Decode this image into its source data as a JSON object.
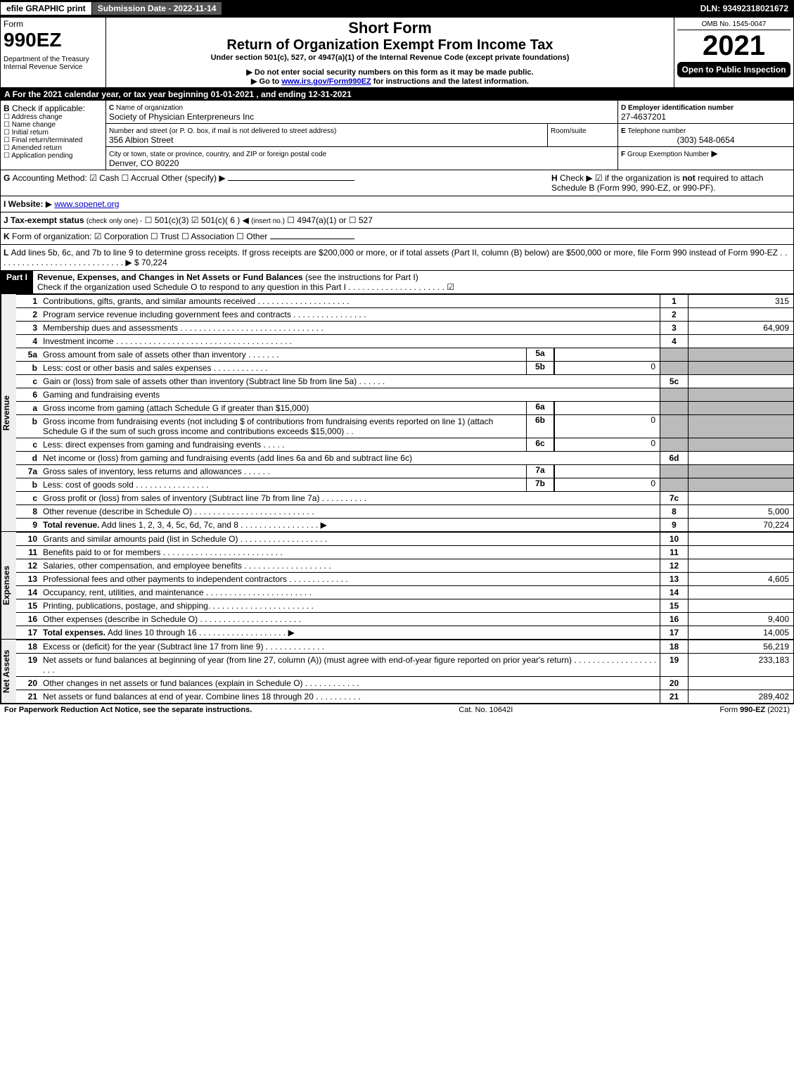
{
  "topbar": {
    "efile": "efile GRAPHIC print",
    "subdate_label": "Submission Date - ",
    "subdate": "2022-11-14",
    "dln_label": "DLN: ",
    "dln": "93492318021672"
  },
  "header": {
    "form_word": "Form",
    "form_num": "990EZ",
    "dept": "Department of the Treasury",
    "irs": "Internal Revenue Service",
    "title1": "Short Form",
    "title2": "Return of Organization Exempt From Income Tax",
    "under": "Under section 501(c), 527, or 4947(a)(1) of the Internal Revenue Code (except private foundations)",
    "warn": "Do not enter social security numbers on this form as it may be made public.",
    "goto_pre": "Go to ",
    "goto_link": "www.irs.gov/Form990EZ",
    "goto_post": " for instructions and the latest information.",
    "omb": "OMB No. 1545-0047",
    "year": "2021",
    "open": "Open to Public Inspection"
  },
  "A": {
    "text": "For the 2021 calendar year, or tax year beginning 01-01-2021 , and ending 12-31-2021"
  },
  "B": {
    "label": "Check if applicable:",
    "opts": [
      "Address change",
      "Name change",
      "Initial return",
      "Final return/terminated",
      "Amended return",
      "Application pending"
    ]
  },
  "C": {
    "name_label": "Name of organization",
    "name": "Society of Physician Enterpreneurs Inc",
    "street_label": "Number and street (or P. O. box, if mail is not delivered to street address)",
    "room_label": "Room/suite",
    "street": "356 Albion Street",
    "city_label": "City or town, state or province, country, and ZIP or foreign postal code",
    "city": "Denver, CO  80220"
  },
  "D": {
    "label": "Employer identification number",
    "val": "27-4637201"
  },
  "E": {
    "label": "Telephone number",
    "val": "(303) 548-0654"
  },
  "F": {
    "label": "Group Exemption Number",
    "arrow": "▶"
  },
  "G": {
    "label": "Accounting Method:",
    "cash": "Cash",
    "accrual": "Accrual",
    "other": "Other (specify)"
  },
  "H": {
    "text1": "Check ▶",
    "text2": "if the organization is ",
    "not": "not",
    "text3": " required to attach Schedule B (Form 990, 990-EZ, or 990-PF)."
  },
  "I": {
    "label": "Website:",
    "val": "www.sopenet.org"
  },
  "J": {
    "label": "Tax-exempt status",
    "note": "(check only one) -",
    "o1": "501(c)(3)",
    "o2": "501(c)( 6 )",
    "o2_note": "(insert no.)",
    "o3": "4947(a)(1) or",
    "o4": "527"
  },
  "K": {
    "label": "Form of organization:",
    "opts": [
      "Corporation",
      "Trust",
      "Association",
      "Other"
    ]
  },
  "L": {
    "text": "Add lines 5b, 6c, and 7b to line 9 to determine gross receipts. If gross receipts are $200,000 or more, or if total assets (Part II, column (B) below) are $500,000 or more, file Form 990 instead of Form 990-EZ  .  .  .  .  .  .  .  .  .  .  .  .  .  .  .  .  .  .  .  .  .  .  .  .  .  .  .  .  ▶ $ ",
    "val": "70,224"
  },
  "part1": {
    "label": "Part I",
    "title": "Revenue, Expenses, and Changes in Net Assets or Fund Balances",
    "title_note": "(see the instructions for Part I)",
    "check_note": "Check if the organization used Schedule O to respond to any question in this Part I  .  .  .  .  .  .  .  .  .  .  .  .  .  .  .  .  .  .  .  .  .",
    "sections": {
      "revenue": "Revenue",
      "expenses": "Expenses",
      "netassets": "Net Assets"
    },
    "lines": [
      {
        "n": "1",
        "d": "Contributions, gifts, grants, and similar amounts received  .  .  .  .  .  .  .  .  .  .  .  .  .  .  .  .  .  .  .  .",
        "box": "1",
        "amt": "315"
      },
      {
        "n": "2",
        "d": "Program service revenue including government fees and contracts  .  .  .  .  .  .  .  .  .  .  .  .  .  .  .  .",
        "box": "2",
        "amt": ""
      },
      {
        "n": "3",
        "d": "Membership dues and assessments  .  .  .  .  .  .  .  .  .  .  .  .  .  .  .  .  .  .  .  .  .  .  .  .  .  .  .  .  .  .  .",
        "box": "3",
        "amt": "64,909"
      },
      {
        "n": "4",
        "d": "Investment income  .  .  .  .  .  .  .  .  .  .  .  .  .  .  .  .  .  .  .  .  .  .  .  .  .  .  .  .  .  .  .  .  .  .  .  .  .  .",
        "box": "4",
        "amt": ""
      },
      {
        "n": "5a",
        "d": "Gross amount from sale of assets other than inventory  .  .  .  .  .  .  .",
        "sub": "5a",
        "subval": "",
        "shade": true
      },
      {
        "n": "b",
        "d": "Less: cost or other basis and sales expenses  .  .  .  .  .  .  .  .  .  .  .  .",
        "sub": "5b",
        "subval": "0",
        "shade": true
      },
      {
        "n": "c",
        "d": "Gain or (loss) from sale of assets other than inventory (Subtract line 5b from line 5a)  .  .  .  .  .  .",
        "box": "5c",
        "amt": ""
      },
      {
        "n": "6",
        "d": "Gaming and fundraising events",
        "shade": true,
        "nobox": true
      },
      {
        "n": "a",
        "d": "Gross income from gaming (attach Schedule G if greater than $15,000)",
        "sub": "6a",
        "subval": "",
        "shade": true
      },
      {
        "n": "b",
        "d": "Gross income from fundraising events (not including $                         of contributions from fundraising events reported on line 1) (attach Schedule G if the sum of such gross income and contributions exceeds $15,000)   .  .",
        "sub": "6b",
        "subval": "0",
        "shade": true
      },
      {
        "n": "c",
        "d": "Less: direct expenses from gaming and fundraising events  .  .  .  .  .",
        "sub": "6c",
        "subval": "0",
        "shade": true
      },
      {
        "n": "d",
        "d": "Net income or (loss) from gaming and fundraising events (add lines 6a and 6b and subtract line 6c)",
        "box": "6d",
        "amt": ""
      },
      {
        "n": "7a",
        "d": "Gross sales of inventory, less returns and allowances  .  .  .  .  .  .",
        "sub": "7a",
        "subval": "",
        "shade": true
      },
      {
        "n": "b",
        "d": "Less: cost of goods sold    .  .  .  .  .  .  .  .  .  .  .  .  .  .  .  .",
        "sub": "7b",
        "subval": "0",
        "shade": true
      },
      {
        "n": "c",
        "d": "Gross profit or (loss) from sales of inventory (Subtract line 7b from line 7a)  .  .  .  .  .  .  .  .  .  .",
        "box": "7c",
        "amt": ""
      },
      {
        "n": "8",
        "d": "Other revenue (describe in Schedule O)  .  .  .  .  .  .  .  .  .  .  .  .  .  .  .  .  .  .  .  .  .  .  .  .  .  .",
        "box": "8",
        "amt": "5,000"
      },
      {
        "n": "9",
        "d": "<b>Total revenue.</b> Add lines 1, 2, 3, 4, 5c, 6d, 7c, and 8   .  .  .  .  .  .  .  .  .  .  .  .  .  .  .  .  .  ▶",
        "box": "9",
        "amt": "70,224"
      }
    ],
    "exp_lines": [
      {
        "n": "10",
        "d": "Grants and similar amounts paid (list in Schedule O)  .  .  .  .  .  .  .  .  .  .  .  .  .  .  .  .  .  .  .",
        "box": "10",
        "amt": ""
      },
      {
        "n": "11",
        "d": "Benefits paid to or for members    .  .  .  .  .  .  .  .  .  .  .  .  .  .  .  .  .  .  .  .  .  .  .  .  .  .",
        "box": "11",
        "amt": ""
      },
      {
        "n": "12",
        "d": "Salaries, other compensation, and employee benefits  .  .  .  .  .  .  .  .  .  .  .  .  .  .  .  .  .  .  .",
        "box": "12",
        "amt": ""
      },
      {
        "n": "13",
        "d": "Professional fees and other payments to independent contractors  .  .  .  .  .  .  .  .  .  .  .  .  .",
        "box": "13",
        "amt": "4,605"
      },
      {
        "n": "14",
        "d": "Occupancy, rent, utilities, and maintenance  .  .  .  .  .  .  .  .  .  .  .  .  .  .  .  .  .  .  .  .  .  .  .",
        "box": "14",
        "amt": ""
      },
      {
        "n": "15",
        "d": "Printing, publications, postage, and shipping.  .  .  .  .  .  .  .  .  .  .  .  .  .  .  .  .  .  .  .  .  .  .",
        "box": "15",
        "amt": ""
      },
      {
        "n": "16",
        "d": "Other expenses (describe in Schedule O)    .  .  .  .  .  .  .  .  .  .  .  .  .  .  .  .  .  .  .  .  .  .",
        "box": "16",
        "amt": "9,400"
      },
      {
        "n": "17",
        "d": "<b>Total expenses.</b> Add lines 10 through 16    .  .  .  .  .  .  .  .  .  .  .  .  .  .  .  .  .  .  .  ▶",
        "box": "17",
        "amt": "14,005"
      }
    ],
    "na_lines": [
      {
        "n": "18",
        "d": "Excess or (deficit) for the year (Subtract line 17 from line 9)      .  .  .  .  .  .  .  .  .  .  .  .  .",
        "box": "18",
        "amt": "56,219"
      },
      {
        "n": "19",
        "d": "Net assets or fund balances at beginning of year (from line 27, column (A)) (must agree with end-of-year figure reported on prior year's return)  .  .  .  .  .  .  .  .  .  .  .  .  .  .  .  .  .  .  .  .  .",
        "box": "19",
        "amt": "233,183"
      },
      {
        "n": "20",
        "d": "Other changes in net assets or fund balances (explain in Schedule O)  .  .  .  .  .  .  .  .  .  .  .  .",
        "box": "20",
        "amt": ""
      },
      {
        "n": "21",
        "d": "Net assets or fund balances at end of year. Combine lines 18 through 20  .  .  .  .  .  .  .  .  .  .",
        "box": "21",
        "amt": "289,402"
      }
    ]
  },
  "footer": {
    "left": "For Paperwork Reduction Act Notice, see the separate instructions.",
    "mid": "Cat. No. 10642I",
    "right_pre": "Form ",
    "right_b": "990-EZ",
    "right_post": " (2021)"
  },
  "colors": {
    "black": "#000000",
    "gray_shade": "#bbbbbb",
    "gray_row": "#cccccc"
  }
}
